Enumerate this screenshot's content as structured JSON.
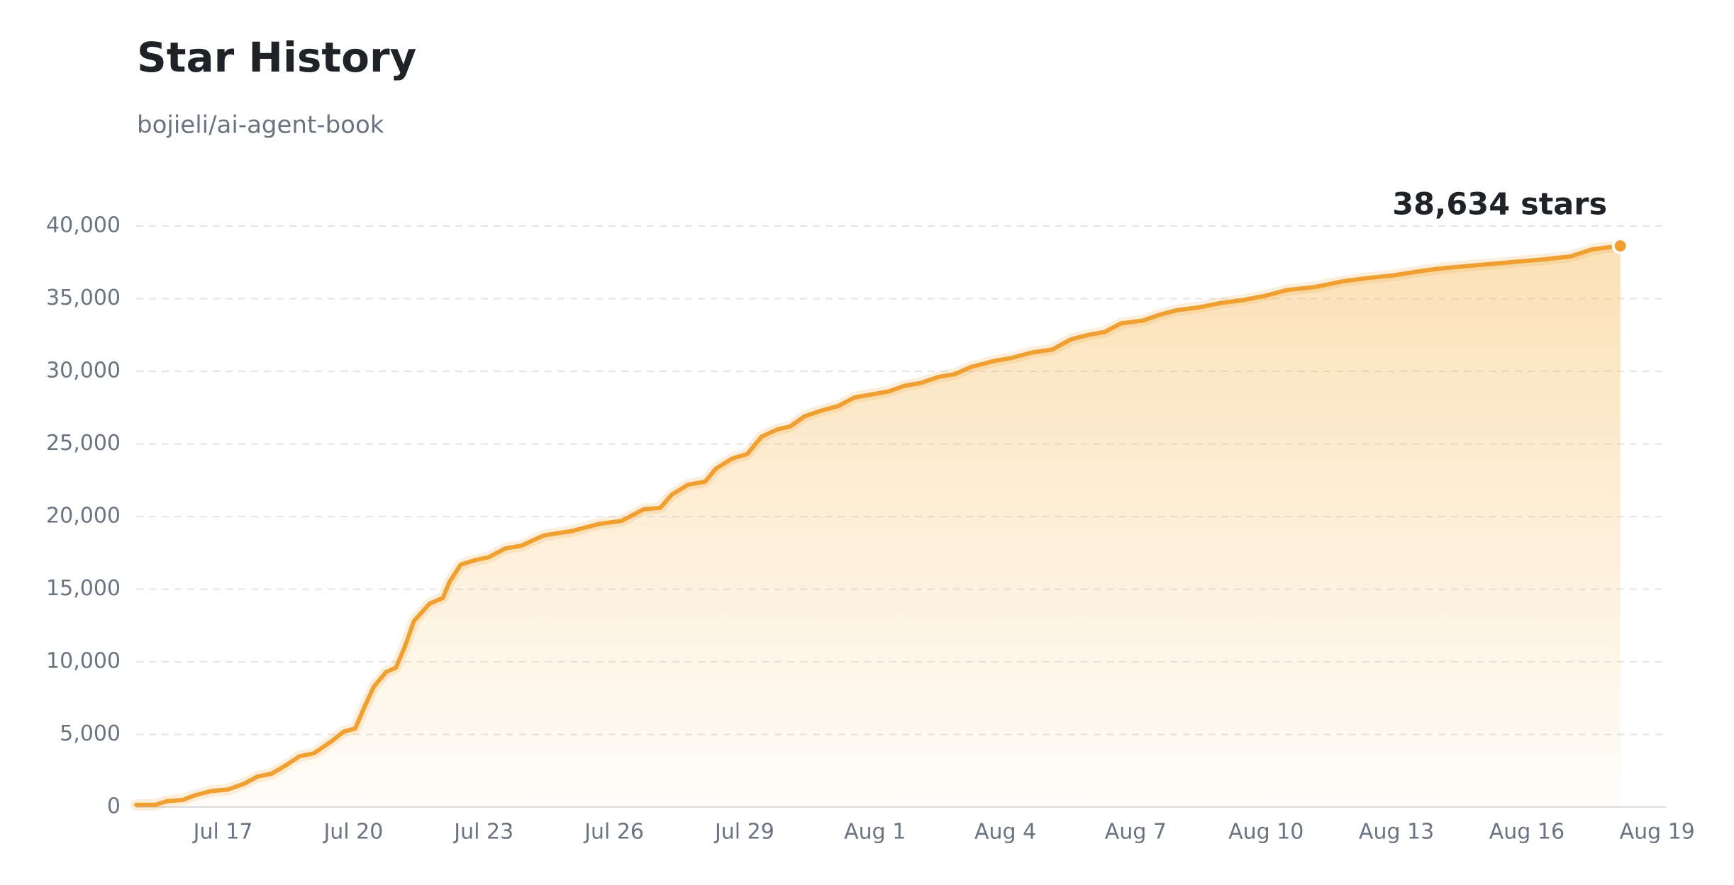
{
  "chart_data": {
    "type": "area",
    "title": "Star History",
    "subtitle": "bojieli/ai-agent-book",
    "annotation": "38,634 stars",
    "color": "#f0a030",
    "grid": true,
    "x": [
      196,
      196.44,
      196.7,
      197.08,
      197.34,
      197.72,
      198.1,
      198.48,
      198.79,
      199.12,
      199.46,
      199.76,
      200.09,
      200.48,
      200.78,
      201.04,
      201.24,
      201.47,
      201.75,
      201.98,
      202.19,
      202.39,
      202.75,
      203.06,
      203.21,
      203.47,
      203.8,
      204.11,
      204.49,
      204.87,
      205.38,
      206.02,
      206.66,
      207.17,
      207.68,
      208.06,
      208.32,
      208.7,
      209.09,
      209.34,
      209.72,
      210.06,
      210.39,
      210.75,
      211.05,
      211.38,
      211.77,
      212.15,
      212.53,
      212.91,
      213.3,
      213.68,
      214.06,
      214.45,
      214.83,
      215.21,
      215.73,
      216.11,
      216.62,
      217.08,
      217.51,
      217.9,
      218.28,
      218.66,
      219.17,
      219.56,
      219.94,
      220.45,
      220.96,
      221.47,
      221.98,
      222.49,
      223.13,
      223.77,
      224.28,
      224.92,
      225.56,
      226.07,
      226.83,
      227.6,
      228.37,
      229,
      229.51,
      230.15
    ],
    "values": [
      150,
      150,
      400,
      500,
      800,
      1100,
      1200,
      1600,
      2100,
      2300,
      2900,
      3500,
      3700,
      4500,
      5200,
      5400,
      6800,
      8300,
      9300,
      9600,
      11100,
      12800,
      14000,
      14400,
      15500,
      16700,
      17000,
      17200,
      17800,
      18000,
      18700,
      19000,
      19500,
      19700,
      20500,
      20600,
      21500,
      22200,
      22400,
      23300,
      24000,
      24300,
      25500,
      26000,
      26200,
      26900,
      27300,
      27600,
      28200,
      28400,
      28600,
      29000,
      29200,
      29600,
      29800,
      30300,
      30700,
      30900,
      31300,
      31500,
      32200,
      32500,
      32700,
      33300,
      33500,
      33900,
      34200,
      34400,
      34700,
      34900,
      35200,
      35600,
      35800,
      36200,
      36400,
      36600,
      36900,
      37100,
      37300,
      37500,
      37700,
      37900,
      38400,
      38634
    ],
    "xlim": [
      196,
      231.2
    ],
    "xticks": [
      {
        "value": 198,
        "label": "Jul 17"
      },
      {
        "value": 201,
        "label": "Jul 20"
      },
      {
        "value": 204,
        "label": "Jul 23"
      },
      {
        "value": 207,
        "label": "Jul 26"
      },
      {
        "value": 210,
        "label": "Jul 29"
      },
      {
        "value": 213,
        "label": "Aug 1"
      },
      {
        "value": 216,
        "label": "Aug 4"
      },
      {
        "value": 219,
        "label": "Aug 7"
      },
      {
        "value": 222,
        "label": "Aug 10"
      },
      {
        "value": 225,
        "label": "Aug 13"
      },
      {
        "value": 228,
        "label": "Aug 16"
      },
      {
        "value": 231,
        "label": "Aug 19"
      }
    ],
    "ylim": [
      0,
      40000
    ],
    "yticks": [
      0,
      {
        "value": 5000,
        "label": "5,000"
      },
      {
        "value": 10000,
        "label": "10,000"
      },
      {
        "value": 15000,
        "label": "15,000"
      },
      {
        "value": 20000,
        "label": "20,000"
      },
      {
        "value": 25000,
        "label": "25,000"
      },
      {
        "value": 30000,
        "label": "30,000"
      },
      {
        "value": 35000,
        "label": "35,000"
      },
      {
        "value": 40000,
        "label": "40,000"
      }
    ]
  }
}
